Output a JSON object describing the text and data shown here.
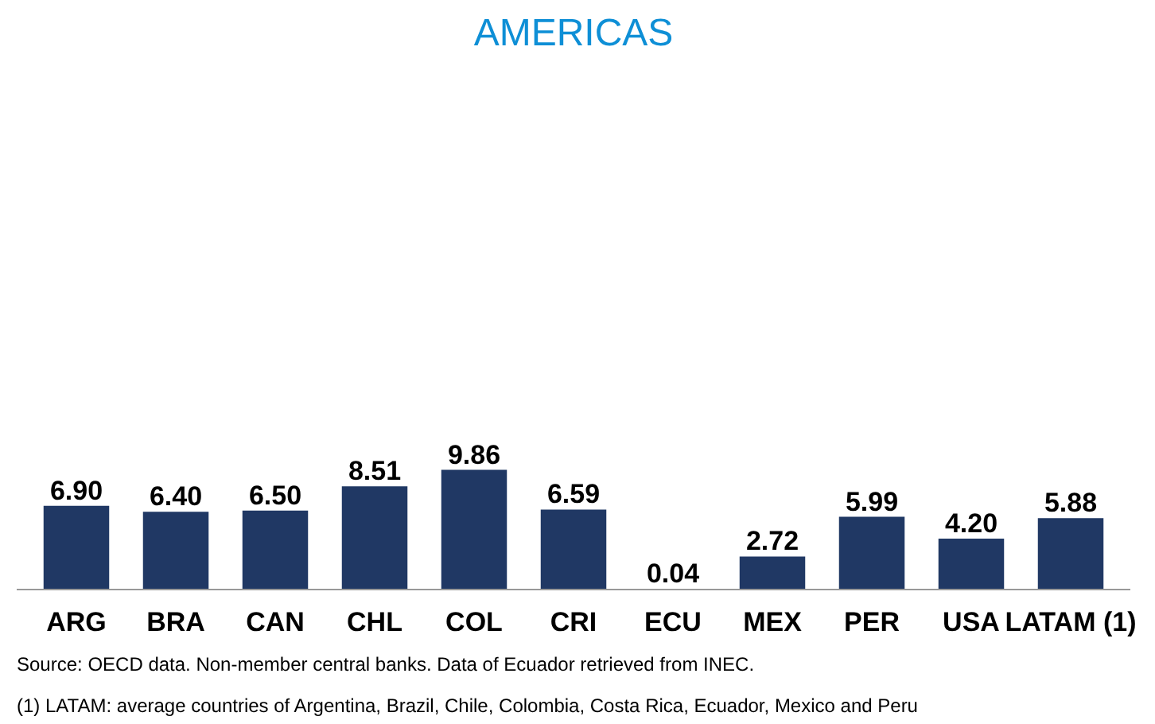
{
  "chart_data": {
    "type": "bar",
    "title": "AMERICAS",
    "categories": [
      "ARG",
      "BRA",
      "CAN",
      "CHL",
      "COL",
      "CRI",
      "ECU",
      "MEX",
      "PER",
      "USA",
      "LATAM (1)"
    ],
    "values": [
      6.9,
      6.4,
      6.5,
      8.51,
      9.86,
      6.59,
      0.04,
      2.72,
      5.99,
      4.2,
      5.88
    ],
    "value_labels": [
      "6.90",
      "6.40",
      "6.50",
      "8.51",
      "9.86",
      "6.59",
      "0.04",
      "2.72",
      "5.99",
      "4.20",
      "5.88"
    ],
    "color": "#203864",
    "annotations": [
      "Source: OECD data. Non-member central banks. Data of Ecuador retrieved from INEC.",
      "(1) LATAM: average countries of Argentina, Brazil, Chile, Colombia, Costa Rica, Ecuador, Mexico and Peru"
    ]
  }
}
